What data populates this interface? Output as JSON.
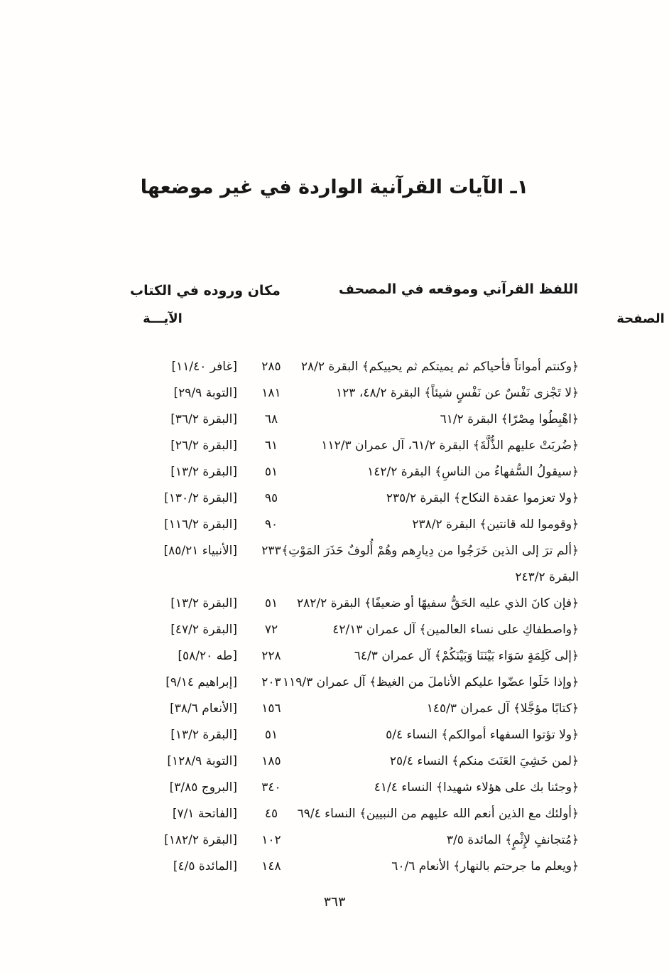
{
  "page": {
    "title": "١ـ الآيات القرآنية الواردة في غير موضعها",
    "footer_page_number": "٣٦٣",
    "text_color": "#161616",
    "background_color": "#fffefd"
  },
  "table": {
    "header_right": "اللفظ القرآني وموقعه في المصحف",
    "header_left": "مكان وروده في الكتاب",
    "subheader_page": "الصفحة",
    "subheader_verse": "الآيـــة",
    "rows": [
      {
        "quote": "﴿وكنتم أمواتاً فأحياكم ثم يميتكم ثم يحييكم﴾ البقرة ٢٨/٢",
        "page": "٢٨٥",
        "ref": "[غافر ١١/٤٠]"
      },
      {
        "quote": "﴿لا تَجْزى نَفْسٌ عن نَفْسٍ شيئاً﴾ البقرة ٤٨/٢، ١٢٣",
        "page": "١٨١",
        "ref": "[التوبة ٢٩/٩]"
      },
      {
        "quote": "﴿اهْبِطُوا مِصْرًا﴾ البقرة ٦١/٢",
        "page": "٦٨",
        "ref": "[البقرة ٣٦/٢]"
      },
      {
        "quote": "﴿ضُربَتْ عليهم الذُّلَّةَ﴾ البقرة ٦١/٢، آل عمران ١١٢/٣",
        "page": "٦١",
        "ref": "[البقرة ٢٦/٢]"
      },
      {
        "quote": "﴿سيقولُ السُّفهاءُ من الناسِ﴾ البقرة ١٤٢/٢",
        "page": "٥١",
        "ref": "[البقرة ١٣/٢]"
      },
      {
        "quote": "﴿ولا تعزموا عقدة النكاح﴾ البقرة ٢٣٥/٢",
        "page": "٩٥",
        "ref": "[البقرة ١٣٠/٢]"
      },
      {
        "quote": "﴿وقوموا لله قانتين﴾ البقرة ٢٣٨/٢",
        "page": "٩٠",
        "ref": "[البقرة ١١٦/٢]"
      },
      {
        "quote": "﴿ألم ترَ إلى الذين خَرَجُوا من دِيارِهم وهُمْ أُلوفٌ حَذَرَ المَوْتِ﴾",
        "quote_line2": "البقرة ٢٤٣/٢",
        "page": "٢٣٣",
        "ref": "[الأنبياء ٨٥/٢١]"
      },
      {
        "quote": "﴿فإن كانَ الذي عليه الحَقُّ سفيهًا أو ضعيفًا﴾ البقرة ٢٨٢/٢",
        "page": "٥١",
        "ref": "[البقرة ١٣/٢]"
      },
      {
        "quote": "﴿واصطفاكِ على نساء العالمين﴾ آل عمران ٤٢/١٣",
        "page": "٧٢",
        "ref": "[البقرة ٤٧/٢]"
      },
      {
        "quote": "﴿إلى كَلِمَةٍ سَوَاء بَيْنَنَا وَبَيْنَكُمْ﴾ آل عمران ٦٤/٣",
        "page": "٢٢٨",
        "ref": "[طه ٥٨/٢٠]"
      },
      {
        "quote": "﴿وإذا خَلَوا عضّوا عليكم الأناملَ من الغيظ﴾ آل عمران ١١٩/٣",
        "page": "٢٠٣",
        "ref": "[إبراهيم ٩/١٤]"
      },
      {
        "quote": "﴿كتابًا مؤجَّلا﴾ آل عمران ١٤٥/٣",
        "page": "١٥٦",
        "ref": "[الأنعام ٣٨/٦]"
      },
      {
        "quote": "﴿ولا تؤتوا السفهاء أموالكم﴾ النساء ٥/٤",
        "page": "٥١",
        "ref": "[البقرة ١٣/٢]"
      },
      {
        "quote": "﴿لمن خَشِيَ العَنَتَ منكم﴾ النساء ٢٥/٤",
        "page": "١٨٥",
        "ref": "[التوبة ١٢٨/٩]"
      },
      {
        "quote": "﴿وجئنا بك على هؤلاء شهيدا﴾ النساء ٤١/٤",
        "page": "٣٤٠",
        "ref": "[البروج ٣/٨٥]"
      },
      {
        "quote": "﴿أولئك مع الذين أنعم الله عليهم من النبيين﴾ النساء ٦٩/٤",
        "page": "٤٥",
        "ref": "[الفاتحة ٧/١]"
      },
      {
        "quote": "﴿مُتجانفٍ لإِثْمٍ﴾ المائدة ٣/٥",
        "page": "١٠٢",
        "ref": "[البقرة ١٨٢/٢]"
      },
      {
        "quote": "﴿ويعلم ما جرحتم بالنهار﴾ الأنعام ٦٠/٦",
        "page": "١٤٨",
        "ref": "[المائدة ٤/٥]"
      }
    ]
  }
}
